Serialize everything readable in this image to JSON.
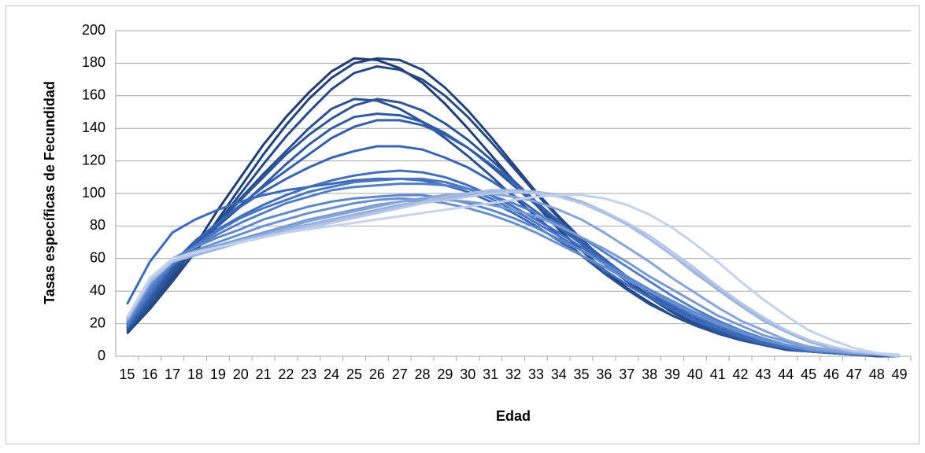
{
  "chart_data": {
    "type": "line",
    "x_label": "Edad",
    "y_label": "Tasas específicas de Fecundidad",
    "categories": [
      "15",
      "16",
      "17",
      "18",
      "19",
      "20",
      "21",
      "22",
      "23",
      "24",
      "25",
      "26",
      "27",
      "28",
      "29",
      "30",
      "31",
      "32",
      "33",
      "34",
      "35",
      "36",
      "37",
      "38",
      "39",
      "40",
      "41",
      "42",
      "43",
      "44",
      "45",
      "46",
      "47",
      "48",
      "49"
    ],
    "ylim": [
      0,
      200
    ],
    "yticks": [
      0,
      20,
      40,
      60,
      80,
      100,
      120,
      140,
      160,
      180,
      200
    ],
    "grid": true,
    "series": [
      {
        "color": "#1f3c73",
        "values": [
          14,
          30,
          48,
          68,
          90,
          110,
          130,
          147,
          162,
          175,
          183,
          182,
          177,
          168,
          155,
          140,
          124,
          108,
          93,
          78,
          65,
          53,
          42,
          33,
          25,
          19,
          14,
          10,
          7,
          5,
          3,
          2,
          1,
          1,
          0
        ]
      },
      {
        "color": "#22427b",
        "values": [
          14,
          29,
          46,
          64,
          84,
          104,
          124,
          142,
          158,
          171,
          180,
          183,
          182,
          176,
          165,
          151,
          135,
          118,
          101,
          86,
          72,
          59,
          47,
          37,
          28,
          21,
          15,
          11,
          7,
          5,
          3,
          2,
          1,
          1,
          0
        ]
      },
      {
        "color": "#264a85",
        "values": [
          15,
          30,
          47,
          64,
          82,
          100,
          118,
          135,
          150,
          164,
          174,
          178,
          176,
          170,
          160,
          147,
          132,
          116,
          100,
          85,
          71,
          58,
          46,
          36,
          27,
          20,
          14,
          10,
          7,
          4,
          3,
          2,
          1,
          0,
          0
        ]
      },
      {
        "color": "#2a5090",
        "values": [
          16,
          32,
          50,
          66,
          82,
          97,
          112,
          126,
          140,
          152,
          158,
          157,
          152,
          144,
          134,
          123,
          111,
          98,
          86,
          74,
          62,
          51,
          41,
          32,
          25,
          19,
          14,
          10,
          7,
          4,
          3,
          2,
          1,
          1,
          0
        ]
      },
      {
        "color": "#2d559a",
        "values": [
          16,
          33,
          52,
          68,
          82,
          96,
          110,
          124,
          136,
          146,
          154,
          158,
          156,
          151,
          143,
          133,
          121,
          108,
          95,
          82,
          69,
          57,
          46,
          36,
          28,
          21,
          15,
          11,
          7,
          5,
          3,
          2,
          1,
          1,
          0
        ]
      },
      {
        "color": "#3059a2",
        "values": [
          17,
          35,
          54,
          68,
          80,
          92,
          105,
          118,
          130,
          140,
          147,
          149,
          148,
          144,
          137,
          128,
          117,
          105,
          93,
          81,
          69,
          57,
          46,
          37,
          29,
          22,
          16,
          11,
          8,
          5,
          3,
          2,
          1,
          1,
          0
        ]
      },
      {
        "color": "#345fab",
        "values": [
          17,
          36,
          55,
          70,
          82,
          93,
          104,
          114,
          124,
          134,
          141,
          145,
          145,
          142,
          136,
          128,
          118,
          107,
          95,
          83,
          71,
          60,
          49,
          39,
          30,
          23,
          17,
          12,
          8,
          5,
          3,
          2,
          1,
          1,
          0
        ]
      },
      {
        "color": "#3865b3",
        "values": [
          18,
          38,
          57,
          71,
          82,
          92,
          101,
          109,
          116,
          122,
          126,
          129,
          129,
          127,
          122,
          116,
          108,
          99,
          89,
          79,
          69,
          59,
          49,
          40,
          31,
          24,
          18,
          13,
          9,
          6,
          4,
          2,
          1,
          1,
          0
        ]
      },
      {
        "color": "#3c6bba",
        "values": [
          32,
          58,
          76,
          84,
          90,
          95,
          99,
          102,
          104,
          106,
          108,
          109,
          109,
          108,
          105,
          101,
          95,
          88,
          80,
          71,
          62,
          53,
          44,
          36,
          29,
          22,
          17,
          12,
          8,
          5,
          3,
          2,
          1,
          1,
          0
        ]
      },
      {
        "color": "#416fbe",
        "values": [
          18,
          38,
          56,
          68,
          78,
          86,
          93,
          99,
          104,
          108,
          111,
          113,
          114,
          113,
          110,
          105,
          99,
          92,
          84,
          76,
          67,
          58,
          49,
          41,
          33,
          26,
          20,
          14,
          10,
          6,
          4,
          2,
          1,
          1,
          0
        ]
      },
      {
        "color": "#4a76c2",
        "values": [
          19,
          40,
          57,
          68,
          77,
          85,
          91,
          96,
          101,
          104,
          107,
          108,
          109,
          109,
          107,
          103,
          97,
          90,
          82,
          74,
          65,
          57,
          48,
          40,
          32,
          25,
          19,
          14,
          10,
          6,
          4,
          2,
          1,
          1,
          0
        ]
      },
      {
        "color": "#547fc6",
        "values": [
          20,
          41,
          58,
          67,
          75,
          82,
          88,
          94,
          98,
          102,
          104,
          105,
          106,
          106,
          105,
          103,
          99,
          94,
          88,
          81,
          73,
          64,
          55,
          46,
          37,
          29,
          22,
          16,
          11,
          7,
          4,
          3,
          2,
          1,
          0
        ]
      },
      {
        "color": "#5f88ca",
        "values": [
          21,
          43,
          60,
          67,
          73,
          78,
          84,
          88,
          92,
          95,
          97,
          98,
          99,
          99,
          97,
          94,
          90,
          85,
          79,
          72,
          65,
          57,
          49,
          41,
          34,
          27,
          21,
          15,
          11,
          7,
          4,
          3,
          2,
          1,
          0
        ]
      },
      {
        "color": "#6a91cf",
        "values": [
          21,
          44,
          59,
          65,
          70,
          75,
          80,
          84,
          88,
          91,
          94,
          96,
          97,
          96,
          94,
          91,
          87,
          82,
          76,
          69,
          62,
          55,
          47,
          40,
          33,
          26,
          20,
          15,
          10,
          7,
          4,
          3,
          2,
          1,
          0
        ]
      },
      {
        "color": "#7899d3",
        "values": [
          22,
          45,
          59,
          64,
          68,
          72,
          76,
          80,
          84,
          87,
          90,
          93,
          95,
          96,
          96,
          95,
          93,
          90,
          86,
          80,
          73,
          66,
          58,
          49,
          41,
          33,
          25,
          19,
          13,
          9,
          5,
          3,
          2,
          1,
          0
        ]
      },
      {
        "color": "#87a4d8",
        "values": [
          22,
          45,
          58,
          63,
          67,
          71,
          75,
          79,
          83,
          86,
          89,
          92,
          95,
          97,
          99,
          100,
          100,
          98,
          95,
          90,
          84,
          76,
          67,
          58,
          48,
          39,
          30,
          22,
          16,
          10,
          6,
          4,
          2,
          1,
          0
        ]
      },
      {
        "color": "#96afdc",
        "values": [
          23,
          46,
          58,
          62,
          66,
          70,
          74,
          78,
          81,
          84,
          87,
          90,
          93,
          95,
          97,
          99,
          101,
          102,
          101,
          99,
          95,
          89,
          81,
          72,
          62,
          51,
          41,
          31,
          22,
          15,
          9,
          5,
          3,
          1,
          0
        ]
      },
      {
        "color": "#a6bbe1",
        "values": [
          23,
          46,
          58,
          63,
          67,
          71,
          74,
          77,
          80,
          83,
          86,
          89,
          92,
          95,
          98,
          100,
          102,
          102,
          101,
          98,
          94,
          88,
          81,
          72,
          62,
          52,
          42,
          32,
          23,
          16,
          10,
          6,
          3,
          2,
          0
        ]
      },
      {
        "color": "#b5c6e6",
        "values": [
          24,
          47,
          59,
          63,
          67,
          70,
          73,
          76,
          79,
          82,
          85,
          88,
          91,
          94,
          96,
          98,
          100,
          101,
          100,
          98,
          94,
          89,
          82,
          74,
          64,
          54,
          43,
          33,
          24,
          16,
          10,
          6,
          3,
          2,
          0
        ]
      },
      {
        "color": "#c4d2eb",
        "values": [
          24,
          48,
          60,
          64,
          67,
          70,
          73,
          76,
          78,
          80,
          82,
          84,
          86,
          88,
          90,
          92,
          94,
          96,
          98,
          99,
          99,
          97,
          93,
          87,
          79,
          69,
          58,
          46,
          35,
          25,
          16,
          10,
          5,
          2,
          1
        ]
      }
    ]
  }
}
